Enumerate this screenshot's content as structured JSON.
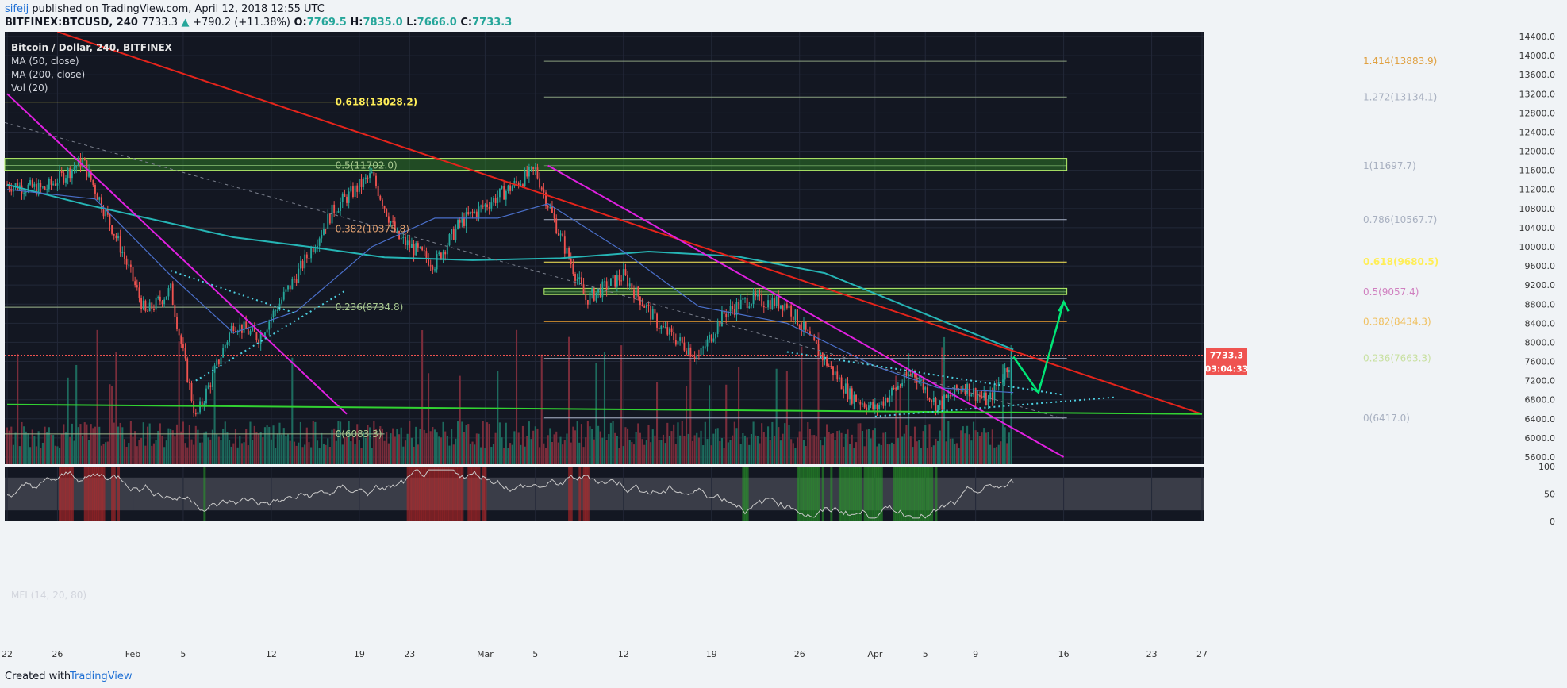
{
  "header": {
    "author": "sifeij",
    "published": "published on TradingView.com, April 12, 2018 12:55 UTC",
    "symbol": "BITFINEX:BTCUSD, 240",
    "last": "7733.3",
    "change": "+790.2 (+11.38%)",
    "o_label": "O:",
    "o": "7769.5",
    "h_label": "H:",
    "h": "7835.0",
    "l_label": "L:",
    "l": "7666.0",
    "c_label": "C:",
    "c": "7733.3"
  },
  "legend": {
    "title": "Bitcoin / Dollar, 240, BITFINEX",
    "ma50": "MA (50, close)",
    "ma200": "MA (200, close)",
    "vol": "Vol (20)"
  },
  "mfi_label": "MFI (14, 20, 80)",
  "footer": {
    "created": "Created with",
    "brand": "TradingView"
  },
  "colors": {
    "background": "#131722",
    "grid": "#232838",
    "up": "#26a69a",
    "down": "#ef5350",
    "ma200": "#26b5b5",
    "ma50": "#4a6fc9",
    "vol_up": "#1d6b5e",
    "vol_down": "#7a2d3b",
    "fib_yellow": "#ffee58",
    "trend_red": "#e5241b",
    "trend_magenta": "#e020e0",
    "support_green": "#32d232",
    "arrow_green": "#00e676",
    "dotted": "#4dd0e1"
  },
  "chart_data": {
    "type": "candlestick",
    "title": "Bitcoin / Dollar, 240, BITFINEX",
    "timeframe": "240",
    "x_ticks": [
      "22",
      "26",
      "Feb",
      "5",
      "12",
      "19",
      "23",
      "Mar",
      "5",
      "12",
      "19",
      "26",
      "Apr",
      "5",
      "9",
      "16",
      "23",
      "27"
    ],
    "ylim": [
      5450,
      14500
    ],
    "y_ticks": [
      5600,
      6000,
      6400,
      6800,
      7200,
      7600,
      8000,
      8400,
      8800,
      9200,
      9600,
      10000,
      10400,
      10800,
      11200,
      11600,
      12000,
      12400,
      12800,
      13200,
      13600,
      14000,
      14400
    ],
    "price_path": [
      {
        "date": "Jan 22",
        "price": 11300
      },
      {
        "date": "Jan 25",
        "price": 11200
      },
      {
        "date": "Jan 28",
        "price": 11800
      },
      {
        "date": "Jan 31",
        "price": 10000
      },
      {
        "date": "Feb 2",
        "price": 8600
      },
      {
        "date": "Feb 4",
        "price": 9100
      },
      {
        "date": "Feb 6",
        "price": 6400
      },
      {
        "date": "Feb 9",
        "price": 8400
      },
      {
        "date": "Feb 11",
        "price": 8100
      },
      {
        "date": "Feb 14",
        "price": 9400
      },
      {
        "date": "Feb 17",
        "price": 10800
      },
      {
        "date": "Feb 20",
        "price": 11500
      },
      {
        "date": "Feb 22",
        "price": 10200
      },
      {
        "date": "Feb 25",
        "price": 9650
      },
      {
        "date": "Feb 27",
        "price": 10500
      },
      {
        "date": "Mar 2",
        "price": 11050
      },
      {
        "date": "Mar 5",
        "price": 11600
      },
      {
        "date": "Mar 7",
        "price": 10200
      },
      {
        "date": "Mar 9",
        "price": 8900
      },
      {
        "date": "Mar 12",
        "price": 9400
      },
      {
        "date": "Mar 15",
        "price": 8300
      },
      {
        "date": "Mar 18",
        "price": 7700
      },
      {
        "date": "Mar 20",
        "price": 8600
      },
      {
        "date": "Mar 22",
        "price": 8900
      },
      {
        "date": "Mar 25",
        "price": 8800
      },
      {
        "date": "Mar 27",
        "price": 8000
      },
      {
        "date": "Mar 30",
        "price": 6900
      },
      {
        "date": "Apr 1",
        "price": 6600
      },
      {
        "date": "Apr 4",
        "price": 7400
      },
      {
        "date": "Apr 6",
        "price": 6650
      },
      {
        "date": "Apr 8",
        "price": 7100
      },
      {
        "date": "Apr 10",
        "price": 6750
      },
      {
        "date": "Apr 12",
        "price": 7733.3
      }
    ],
    "ma200_path": [
      {
        "date": "Jan 22",
        "price": 11300
      },
      {
        "date": "Jan 28",
        "price": 10900
      },
      {
        "date": "Feb 3",
        "price": 10550
      },
      {
        "date": "Feb 9",
        "price": 10200
      },
      {
        "date": "Feb 15",
        "price": 10000
      },
      {
        "date": "Feb 21",
        "price": 9780
      },
      {
        "date": "Feb 28",
        "price": 9720
      },
      {
        "date": "Mar 7",
        "price": 9760
      },
      {
        "date": "Mar 14",
        "price": 9900
      },
      {
        "date": "Mar 21",
        "price": 9800
      },
      {
        "date": "Mar 28",
        "price": 9450
      },
      {
        "date": "Apr 4",
        "price": 8700
      },
      {
        "date": "Apr 12",
        "price": 7850
      }
    ],
    "ma50_path": [
      {
        "date": "Jan 22",
        "price": 11200
      },
      {
        "date": "Jan 29",
        "price": 11000
      },
      {
        "date": "Feb 4",
        "price": 9400
      },
      {
        "date": "Feb 9",
        "price": 8200
      },
      {
        "date": "Feb 14",
        "price": 8650
      },
      {
        "date": "Feb 20",
        "price": 10000
      },
      {
        "date": "Feb 25",
        "price": 10600
      },
      {
        "date": "Mar 2",
        "price": 10600
      },
      {
        "date": "Mar 6",
        "price": 10900
      },
      {
        "date": "Mar 12",
        "price": 9900
      },
      {
        "date": "Mar 18",
        "price": 8750
      },
      {
        "date": "Mar 25",
        "price": 8400
      },
      {
        "date": "Apr 1",
        "price": 7500
      },
      {
        "date": "Apr 6",
        "price": 7050
      },
      {
        "date": "Apr 12",
        "price": 6950
      }
    ],
    "fib_levels": [
      {
        "label": "1.414(13883.9)",
        "price": 13883.9
      },
      {
        "label": "1.272(13134.1)",
        "price": 13134.1
      },
      {
        "label": "1(11697.7)",
        "price": 11697.7
      },
      {
        "label": "0.786(10567.7)",
        "price": 10567.7
      },
      {
        "label": "0.618(9680.5)",
        "price": 9680.5
      },
      {
        "label": "0.5(9057.4)",
        "price": 9057.4
      },
      {
        "label": "0.382(8434.3)",
        "price": 8434.3
      },
      {
        "label": "0.236(7663.3)",
        "price": 7663.3
      },
      {
        "label": "0(6417.0)",
        "price": 6417.0
      }
    ],
    "fib_levels_left": [
      {
        "label": "0.618(13028.2)",
        "price": 13028.2
      },
      {
        "label": "0.5(11702.0)",
        "price": 11702.0
      },
      {
        "label": "0.382(10375.8)",
        "price": 10375.8
      },
      {
        "label": "0.236(8734.8)",
        "price": 8734.8
      },
      {
        "label": "0(6083.3)",
        "price": 6083.3
      }
    ],
    "resistance_zones": [
      {
        "name": "upper",
        "from": 11600,
        "to": 11850
      },
      {
        "name": "middle",
        "from": 9000,
        "to": 9130
      }
    ],
    "trendlines": [
      {
        "name": "red-resistance",
        "from": {
          "date": "Jan 26",
          "price": 14500
        },
        "to": {
          "date": "Apr 27",
          "price": 6500
        }
      },
      {
        "name": "magenta-left",
        "from": {
          "date": "Jan 22",
          "price": 13200
        },
        "to": {
          "date": "Feb 18",
          "price": 6500
        }
      },
      {
        "name": "magenta-right",
        "from": {
          "date": "Mar 6",
          "price": 11700
        },
        "to": {
          "date": "Apr 16",
          "price": 5600
        }
      },
      {
        "name": "green-support",
        "from": {
          "date": "Jan 22",
          "price": 6700
        },
        "to": {
          "date": "Apr 27",
          "price": 6500
        }
      }
    ],
    "current_price": "7733.3",
    "countdown": "03:04:33",
    "mfi": {
      "label": "MFI (14, 20, 80)",
      "y_ticks": [
        100,
        50,
        0
      ],
      "band": [
        20,
        80
      ]
    },
    "projection": [
      {
        "date": "Apr 12",
        "price": 7700
      },
      {
        "date": "Apr 14",
        "price": 6950
      },
      {
        "date": "Apr 16",
        "price": 8850
      }
    ]
  }
}
